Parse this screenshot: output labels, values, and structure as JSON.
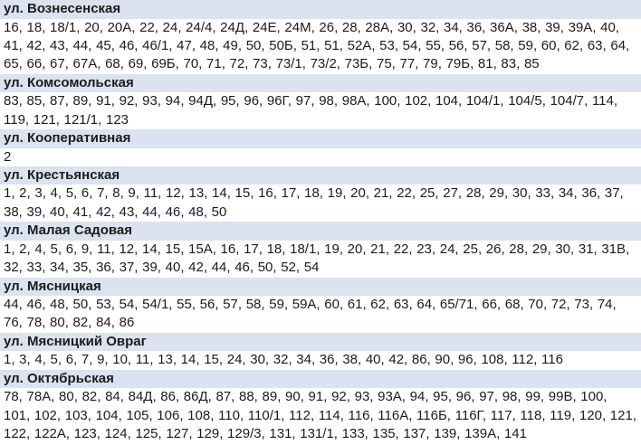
{
  "page": {
    "header_background": "#dae3ef",
    "text_color": "#1b1b1b",
    "background": "#ffffff"
  },
  "sections": [
    {
      "street": "ул. Вознесенская",
      "numbers": [
        "16",
        "18",
        "18/1",
        "20",
        "20А",
        "22",
        "24",
        "24/4",
        "24Д",
        "24Е",
        "24М",
        "26",
        "28",
        "28А",
        "30",
        "32",
        "34",
        "36",
        "36А",
        "38",
        "39",
        "39А",
        "40",
        "41",
        "42",
        "43",
        "44",
        "45",
        "46",
        "46/1",
        "47",
        "48",
        "49",
        "50",
        "50Б",
        "51",
        "51",
        "52А",
        "53",
        "54",
        "55",
        "56",
        "57",
        "58",
        "59",
        "60",
        "62",
        "63",
        "64",
        "65",
        "66",
        "67",
        "67А",
        "68",
        "69",
        "69Б",
        "70",
        "71",
        "72",
        "73",
        "73/1",
        "73/2",
        "73Б",
        "75",
        "77",
        "79",
        "79Б",
        "81",
        "83",
        "85"
      ]
    },
    {
      "street": "ул. Комсомольская",
      "numbers": [
        "83",
        "85",
        "87",
        "89",
        "91",
        "92",
        "93",
        "94",
        "94Д",
        "95",
        "96",
        "96Г",
        "97",
        "98",
        "98А",
        "100",
        "102",
        "104",
        "104/1",
        "104/5",
        "104/7",
        "114",
        "119",
        "121",
        "121/1",
        "123"
      ]
    },
    {
      "street": "ул. Кооперативная",
      "numbers": [
        "2"
      ]
    },
    {
      "street": "ул. Крестьянская",
      "numbers": [
        "1",
        "2",
        "3",
        "4",
        "5",
        "6",
        "7",
        "8",
        "9",
        "11",
        "12",
        "13",
        "14",
        "15",
        "16",
        "17",
        "18",
        "19",
        "20",
        "21",
        "22",
        "25",
        "27",
        "28",
        "29",
        "30",
        "33",
        "34",
        "36",
        "37",
        "38",
        "39",
        "40",
        "41",
        "42",
        "43",
        "44",
        "46",
        "48",
        "50"
      ]
    },
    {
      "street": "ул. Малая Садовая",
      "numbers": [
        "1",
        "2",
        "4",
        "5",
        "6",
        "9",
        "11",
        "12",
        "14",
        "15",
        "15А",
        "16",
        "17",
        "18",
        "18/1",
        "19",
        "20",
        "21",
        "22",
        "23",
        "24",
        "25",
        "26",
        "28",
        "29",
        "30",
        "31",
        "31В",
        "32",
        "33",
        "34",
        "35",
        "36",
        "37",
        "39",
        "40",
        "42",
        "44",
        "46",
        "50",
        "52",
        "54"
      ]
    },
    {
      "street": "ул. Мясницкая",
      "numbers": [
        "44",
        "46",
        "48",
        "50",
        "53",
        "54",
        "54/1",
        "55",
        "56",
        "57",
        "58",
        "59",
        "59А",
        "60",
        "61",
        "62",
        "63",
        "64",
        "65/71",
        "66",
        "68",
        "70",
        "72",
        "73",
        "74",
        "76",
        "78",
        "80",
        "82",
        "84",
        "86"
      ]
    },
    {
      "street": "ул. Мясницкий Овраг",
      "numbers": [
        "1",
        "3",
        "4",
        "5",
        "6",
        "7",
        "9",
        "10",
        "11",
        "13",
        "14",
        "15",
        "24",
        "30",
        "32",
        "34",
        "36",
        "38",
        "40",
        "42",
        "86",
        "90",
        "96",
        "108",
        "112",
        "116"
      ]
    },
    {
      "street": "ул. Октябрьская",
      "numbers": [
        "78",
        "78А",
        "80",
        "82",
        "84",
        "84Д",
        "86",
        "86Д",
        "87",
        "88",
        "89",
        "90",
        "91",
        "92",
        "93",
        "93А",
        "94",
        "95",
        "96",
        "97",
        "98",
        "99",
        "99В",
        "100",
        "101",
        "102",
        "103",
        "104",
        "105",
        "106",
        "108",
        "110",
        "110/1",
        "112",
        "114",
        "116",
        "116А",
        "116Б",
        "116Г",
        "117",
        "118",
        "119",
        "120",
        "121",
        "122",
        "122А",
        "123",
        "124",
        "125",
        "127",
        "129",
        "129/3",
        "131",
        "131/1",
        "133",
        "135",
        "137",
        "139",
        "139А",
        "141"
      ]
    }
  ]
}
